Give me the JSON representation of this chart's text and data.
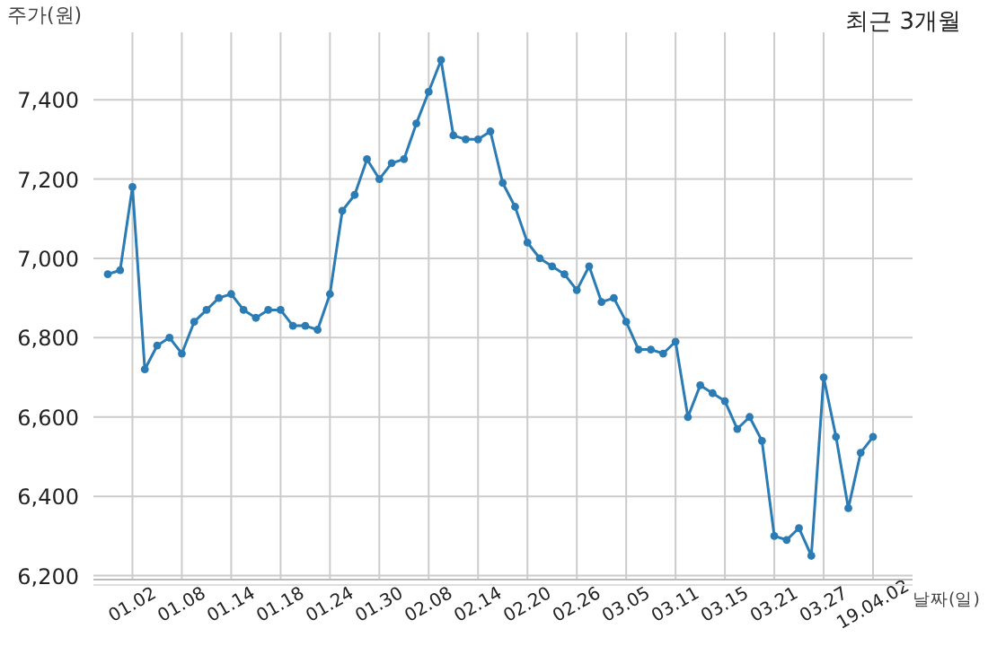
{
  "chart_data": {
    "type": "line",
    "title": "최근 3개월",
    "xlabel": "날짜(일)",
    "ylabel": "주가(원)",
    "categories": [
      null,
      null,
      "01.02",
      null,
      null,
      null,
      "01.08",
      null,
      null,
      null,
      "01.14",
      null,
      null,
      null,
      "01.18",
      null,
      null,
      null,
      "01.24",
      null,
      null,
      null,
      "01.30",
      null,
      null,
      null,
      "02.08",
      null,
      null,
      null,
      "02.14",
      null,
      null,
      null,
      "02.20",
      null,
      null,
      null,
      "02.26",
      null,
      null,
      null,
      "03.05",
      null,
      null,
      null,
      "03.11",
      null,
      null,
      null,
      "03.15",
      null,
      null,
      null,
      "03.21",
      null,
      null,
      null,
      "03.27",
      null,
      null,
      null,
      "19.04.02"
    ],
    "series": [
      {
        "color": "#2b7bb4",
        "values": [
          6960,
          6970,
          7180,
          6720,
          6780,
          6800,
          6760,
          6840,
          6870,
          6900,
          6910,
          6870,
          6850,
          6870,
          6870,
          6830,
          6830,
          6820,
          6910,
          7120,
          7160,
          7250,
          7200,
          7240,
          7250,
          7340,
          7420,
          7500,
          7310,
          7300,
          7300,
          7320,
          7190,
          7130,
          7040,
          7000,
          6980,
          6960,
          6920,
          6980,
          6890,
          6900,
          6840,
          6770,
          6770,
          6760,
          6790,
          6600,
          6680,
          6660,
          6640,
          6570,
          6600,
          6540,
          6300,
          6290,
          6320,
          6250,
          6700,
          6550,
          6370,
          6510,
          6550
        ]
      }
    ],
    "ylim": [
      6190,
      7570
    ],
    "yticks": [
      {
        "value": 6200,
        "label": "6,200"
      },
      {
        "value": 6400,
        "label": "6,400"
      },
      {
        "value": 6600,
        "label": "6,600"
      },
      {
        "value": 6800,
        "label": "6,800"
      },
      {
        "value": 7000,
        "label": "7,000"
      },
      {
        "value": 7200,
        "label": "7,200"
      },
      {
        "value": 7400,
        "label": "7,400"
      }
    ],
    "grid": true,
    "marker": "circle",
    "line_style": "solid"
  }
}
